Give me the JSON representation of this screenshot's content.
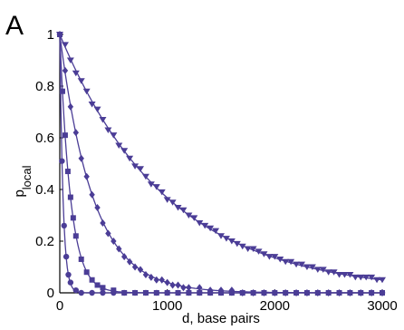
{
  "panel_label": "A",
  "chart_data": {
    "type": "scatter",
    "title": "",
    "xlabel": "d, base pairs",
    "ylabel_main": "p",
    "ylabel_sub": "local",
    "xlim": [
      0,
      3000
    ],
    "ylim": [
      0,
      1
    ],
    "xticks": [
      0,
      1000,
      2000,
      3000
    ],
    "yticks": [
      0,
      0.2,
      0.4,
      0.6,
      0.8,
      1
    ],
    "xtick_labels": [
      "0",
      "1000",
      "2000",
      "3000"
    ],
    "ytick_labels": [
      "0",
      "0.2",
      "0.4",
      "0.6",
      "0.8",
      "1"
    ],
    "grid": false,
    "legend": "none",
    "color": "#4b3d96",
    "series": [
      {
        "marker": "circle",
        "decay_length_bp": 30,
        "points": [
          [
            0,
            1.0
          ],
          [
            20,
            0.51
          ],
          [
            40,
            0.26
          ],
          [
            60,
            0.14
          ],
          [
            80,
            0.07
          ],
          [
            100,
            0.04
          ],
          [
            150,
            0.01
          ],
          [
            200,
            0.0
          ],
          [
            300,
            0.0
          ],
          [
            400,
            0.0
          ],
          [
            500,
            0.0
          ],
          [
            600,
            0.0
          ],
          [
            700,
            0.0
          ],
          [
            800,
            0.0
          ],
          [
            900,
            0.0
          ],
          [
            1000,
            0.0
          ],
          [
            1100,
            0.0
          ],
          [
            1200,
            0.0
          ],
          [
            1300,
            0.0
          ],
          [
            1400,
            0.0
          ],
          [
            1500,
            0.0
          ],
          [
            1600,
            0.0
          ],
          [
            1700,
            0.0
          ],
          [
            1800,
            0.0
          ],
          [
            1900,
            0.0
          ],
          [
            2000,
            0.0
          ],
          [
            2100,
            0.0
          ],
          [
            2200,
            0.0
          ],
          [
            2300,
            0.0
          ],
          [
            2400,
            0.0
          ],
          [
            2500,
            0.0
          ],
          [
            2600,
            0.0
          ],
          [
            2700,
            0.0
          ],
          [
            2800,
            0.0
          ],
          [
            2900,
            0.0
          ],
          [
            3000,
            0.0
          ]
        ]
      },
      {
        "marker": "square",
        "decay_length_bp": 100,
        "points": [
          [
            0,
            1.0
          ],
          [
            25,
            0.78
          ],
          [
            50,
            0.61
          ],
          [
            75,
            0.47
          ],
          [
            100,
            0.37
          ],
          [
            125,
            0.29
          ],
          [
            150,
            0.22
          ],
          [
            200,
            0.13
          ],
          [
            250,
            0.08
          ],
          [
            300,
            0.05
          ],
          [
            350,
            0.03
          ],
          [
            400,
            0.02
          ],
          [
            500,
            0.01
          ],
          [
            600,
            0.0
          ],
          [
            700,
            0.0
          ],
          [
            800,
            0.0
          ],
          [
            900,
            0.0
          ],
          [
            1000,
            0.0
          ],
          [
            1100,
            0.0
          ],
          [
            1200,
            0.0
          ],
          [
            1300,
            0.0
          ],
          [
            1400,
            0.0
          ],
          [
            1500,
            0.0
          ],
          [
            1600,
            0.0
          ],
          [
            1700,
            0.0
          ],
          [
            1800,
            0.0
          ],
          [
            1900,
            0.0
          ],
          [
            2000,
            0.0
          ],
          [
            2100,
            0.0
          ],
          [
            2200,
            0.0
          ],
          [
            2300,
            0.0
          ],
          [
            2400,
            0.0
          ],
          [
            2500,
            0.0
          ],
          [
            2600,
            0.0
          ],
          [
            2700,
            0.0
          ],
          [
            2800,
            0.0
          ],
          [
            2900,
            0.0
          ],
          [
            3000,
            0.0
          ]
        ]
      },
      {
        "marker": "diamond",
        "decay_length_bp": 310,
        "points": [
          [
            0,
            1.0
          ],
          [
            50,
            0.86
          ],
          [
            100,
            0.72
          ],
          [
            150,
            0.62
          ],
          [
            200,
            0.52
          ],
          [
            250,
            0.45
          ],
          [
            300,
            0.38
          ],
          [
            350,
            0.33
          ],
          [
            400,
            0.27
          ],
          [
            450,
            0.23
          ],
          [
            500,
            0.2
          ],
          [
            550,
            0.17
          ],
          [
            600,
            0.14
          ],
          [
            650,
            0.12
          ],
          [
            700,
            0.1
          ],
          [
            750,
            0.09
          ],
          [
            800,
            0.07
          ],
          [
            850,
            0.06
          ],
          [
            900,
            0.05
          ],
          [
            950,
            0.05
          ],
          [
            1000,
            0.04
          ],
          [
            1050,
            0.03
          ],
          [
            1100,
            0.03
          ],
          [
            1150,
            0.02
          ],
          [
            1200,
            0.02
          ],
          [
            1300,
            0.02
          ],
          [
            1400,
            0.01
          ],
          [
            1500,
            0.01
          ],
          [
            1600,
            0.01
          ],
          [
            1700,
            0.0
          ],
          [
            1800,
            0.0
          ],
          [
            1900,
            0.0
          ],
          [
            2000,
            0.0
          ],
          [
            2100,
            0.0
          ],
          [
            2200,
            0.0
          ],
          [
            2300,
            0.0
          ],
          [
            2400,
            0.0
          ],
          [
            2500,
            0.0
          ],
          [
            2600,
            0.0
          ],
          [
            2700,
            0.0
          ],
          [
            2800,
            0.0
          ],
          [
            2900,
            0.0
          ],
          [
            3000,
            0.0
          ]
        ]
      },
      {
        "marker": "triangle-down",
        "decay_length_bp": 1000,
        "points": [
          [
            0,
            1.0
          ],
          [
            50,
            0.96
          ],
          [
            100,
            0.9
          ],
          [
            150,
            0.85
          ],
          [
            200,
            0.82
          ],
          [
            250,
            0.78
          ],
          [
            300,
            0.73
          ],
          [
            350,
            0.71
          ],
          [
            400,
            0.67
          ],
          [
            450,
            0.63
          ],
          [
            500,
            0.61
          ],
          [
            550,
            0.57
          ],
          [
            600,
            0.55
          ],
          [
            650,
            0.52
          ],
          [
            700,
            0.49
          ],
          [
            750,
            0.48
          ],
          [
            800,
            0.45
          ],
          [
            850,
            0.42
          ],
          [
            900,
            0.41
          ],
          [
            950,
            0.39
          ],
          [
            1000,
            0.36
          ],
          [
            1050,
            0.35
          ],
          [
            1100,
            0.33
          ],
          [
            1150,
            0.32
          ],
          [
            1200,
            0.3
          ],
          [
            1250,
            0.29
          ],
          [
            1300,
            0.27
          ],
          [
            1350,
            0.26
          ],
          [
            1400,
            0.25
          ],
          [
            1450,
            0.24
          ],
          [
            1500,
            0.22
          ],
          [
            1550,
            0.21
          ],
          [
            1600,
            0.2
          ],
          [
            1650,
            0.19
          ],
          [
            1700,
            0.18
          ],
          [
            1750,
            0.17
          ],
          [
            1800,
            0.17
          ],
          [
            1850,
            0.16
          ],
          [
            1900,
            0.15
          ],
          [
            1950,
            0.14
          ],
          [
            2000,
            0.14
          ],
          [
            2050,
            0.13
          ],
          [
            2100,
            0.12
          ],
          [
            2150,
            0.12
          ],
          [
            2200,
            0.11
          ],
          [
            2250,
            0.11
          ],
          [
            2300,
            0.1
          ],
          [
            2350,
            0.1
          ],
          [
            2400,
            0.09
          ],
          [
            2450,
            0.09
          ],
          [
            2500,
            0.08
          ],
          [
            2550,
            0.08
          ],
          [
            2600,
            0.07
          ],
          [
            2650,
            0.07
          ],
          [
            2700,
            0.07
          ],
          [
            2750,
            0.06
          ],
          [
            2800,
            0.06
          ],
          [
            2850,
            0.06
          ],
          [
            2900,
            0.06
          ],
          [
            2950,
            0.05
          ],
          [
            3000,
            0.05
          ]
        ]
      }
    ]
  }
}
